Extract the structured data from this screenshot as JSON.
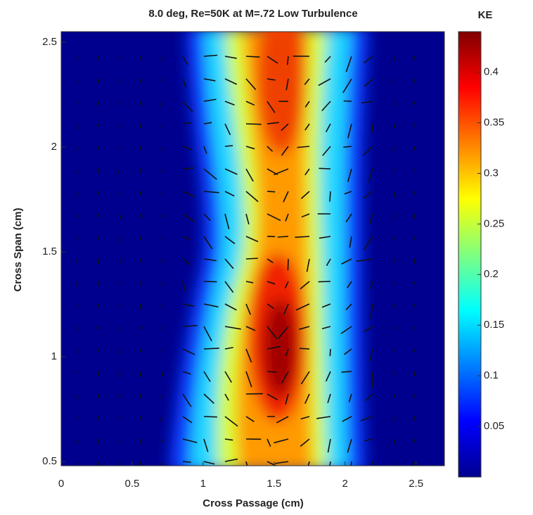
{
  "chart_data": {
    "type": "contour",
    "title": "8.0 deg, Re=50K at M=.72 Low Turbulence",
    "x_label": "Cross Passage (cm)",
    "y_label": "Cross Span (cm)",
    "xlim": [
      0,
      2.7
    ],
    "xticks": [
      0,
      0.5,
      1,
      1.5,
      2,
      2.5
    ],
    "ylim": [
      0.48,
      2.55
    ],
    "yticks": [
      0.5,
      1,
      1.5,
      2,
      2.5
    ],
    "colorbar_label": "KE",
    "clim": [
      0,
      0.44
    ],
    "cticks": [
      0.05,
      0.1,
      0.15,
      0.2,
      0.25,
      0.3,
      0.35,
      0.4
    ]
  }
}
